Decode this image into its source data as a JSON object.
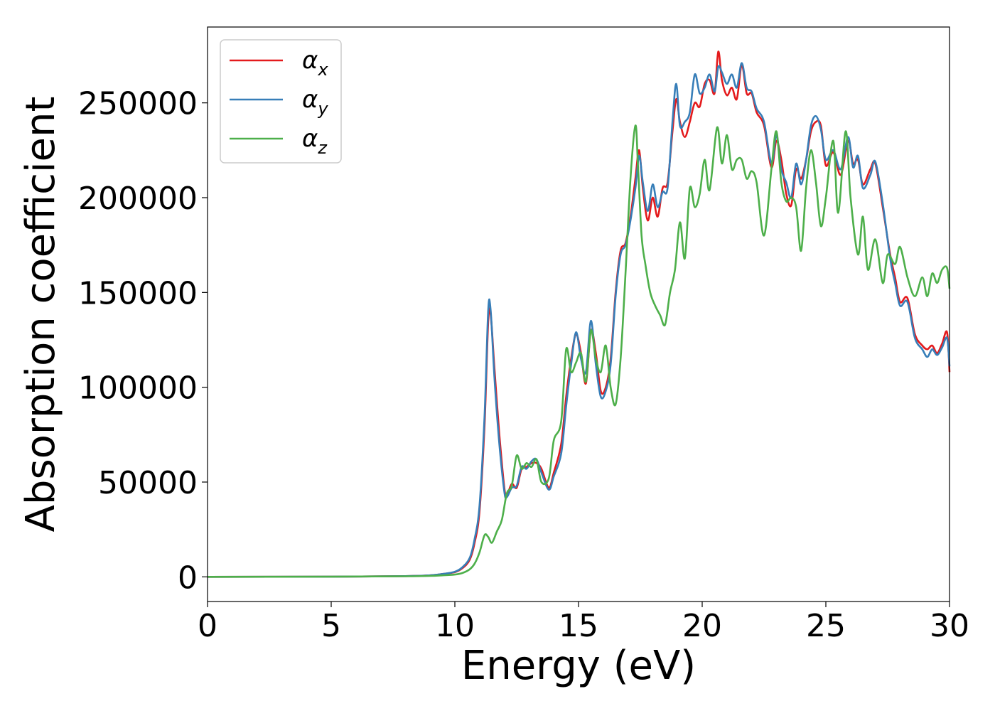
{
  "chart_data": {
    "type": "line",
    "title": "",
    "xlabel": "Energy (eV)",
    "ylabel": "Absorption coefficient",
    "xlim": [
      0,
      30
    ],
    "ylim": [
      -13000,
      290000
    ],
    "xticks": [
      0,
      5,
      10,
      15,
      20,
      25,
      30
    ],
    "yticks": [
      0,
      50000,
      100000,
      150000,
      200000,
      250000
    ],
    "grid": false,
    "legend": {
      "position": "top-left"
    },
    "series": [
      {
        "name": "α_x",
        "label_base": "α",
        "label_sub": "x",
        "color": "#e41a1c",
        "x": [
          0,
          5,
          8,
          9,
          9.5,
          10,
          10.3,
          10.6,
          10.8,
          11.0,
          11.2,
          11.35,
          11.45,
          11.6,
          11.8,
          12.0,
          12.1,
          12.3,
          12.5,
          12.7,
          12.9,
          13.1,
          13.3,
          13.5,
          13.8,
          14.0,
          14.3,
          14.5,
          14.7,
          14.9,
          15.1,
          15.3,
          15.5,
          15.7,
          15.9,
          16.1,
          16.3,
          16.5,
          16.7,
          16.9,
          17.1,
          17.3,
          17.45,
          17.6,
          17.8,
          18.0,
          18.2,
          18.4,
          18.6,
          18.8,
          18.95,
          19.1,
          19.3,
          19.5,
          19.7,
          19.9,
          20.1,
          20.3,
          20.5,
          20.65,
          20.8,
          21.0,
          21.2,
          21.4,
          21.6,
          21.8,
          22.0,
          22.2,
          22.5,
          22.8,
          23.0,
          23.2,
          23.4,
          23.6,
          23.8,
          24.0,
          24.2,
          24.4,
          24.6,
          24.8,
          25.0,
          25.3,
          25.6,
          25.9,
          26.1,
          26.3,
          26.5,
          26.8,
          27.0,
          27.3,
          27.6,
          27.8,
          28.0,
          28.3,
          28.6,
          28.9,
          29.1,
          29.3,
          29.5,
          29.7,
          29.9,
          30.0
        ],
        "y": [
          0,
          100,
          400,
          800,
          1500,
          2500,
          4500,
          9000,
          18000,
          35000,
          80000,
          135000,
          138000,
          110000,
          75000,
          47000,
          43000,
          49000,
          47000,
          57000,
          58000,
          60000,
          60000,
          57000,
          47000,
          55000,
          70000,
          95000,
          115000,
          128000,
          118000,
          102000,
          130000,
          118000,
          98000,
          100000,
          115000,
          150000,
          172000,
          176000,
          190000,
          210000,
          225000,
          205000,
          188000,
          200000,
          190000,
          205000,
          208000,
          235000,
          252000,
          240000,
          232000,
          240000,
          250000,
          248000,
          260000,
          262000,
          255000,
          277000,
          262000,
          254000,
          258000,
          252000,
          270000,
          255000,
          255000,
          245000,
          238000,
          216000,
          230000,
          220000,
          202000,
          196000,
          215000,
          210000,
          220000,
          235000,
          240000,
          238000,
          217000,
          224000,
          212000,
          230000,
          218000,
          220000,
          207000,
          215000,
          218000,
          195000,
          170000,
          158000,
          145000,
          147000,
          128000,
          122000,
          120000,
          122000,
          118000,
          123000,
          129000,
          108000
        ]
      },
      {
        "name": "α_y",
        "label_base": "α",
        "label_sub": "y",
        "color": "#377eb8",
        "x": [
          0,
          5,
          8,
          9,
          9.5,
          10,
          10.3,
          10.6,
          10.8,
          11.0,
          11.2,
          11.35,
          11.45,
          11.6,
          11.8,
          12.0,
          12.1,
          12.3,
          12.5,
          12.7,
          12.9,
          13.1,
          13.3,
          13.5,
          13.8,
          14.0,
          14.3,
          14.5,
          14.7,
          14.9,
          15.1,
          15.3,
          15.5,
          15.7,
          15.9,
          16.1,
          16.3,
          16.5,
          16.7,
          16.9,
          17.1,
          17.3,
          17.45,
          17.6,
          17.8,
          18.0,
          18.2,
          18.4,
          18.6,
          18.8,
          18.95,
          19.1,
          19.3,
          19.5,
          19.7,
          19.9,
          20.1,
          20.3,
          20.5,
          20.65,
          20.8,
          21.0,
          21.2,
          21.4,
          21.6,
          21.8,
          22.0,
          22.2,
          22.5,
          22.8,
          23.0,
          23.2,
          23.4,
          23.6,
          23.8,
          24.0,
          24.2,
          24.4,
          24.6,
          24.8,
          25.0,
          25.3,
          25.6,
          25.9,
          26.1,
          26.3,
          26.5,
          26.8,
          27.0,
          27.3,
          27.6,
          27.8,
          28.0,
          28.3,
          28.6,
          28.9,
          29.1,
          29.3,
          29.5,
          29.7,
          29.9,
          30.0
        ],
        "y": [
          0,
          100,
          400,
          800,
          1500,
          2700,
          5000,
          10000,
          20000,
          38000,
          85000,
          141000,
          140000,
          105000,
          70000,
          45000,
          42000,
          47000,
          48000,
          58000,
          57000,
          61000,
          62000,
          55000,
          46000,
          53000,
          65000,
          90000,
          112000,
          129000,
          115000,
          108000,
          135000,
          112000,
          95000,
          98000,
          112000,
          148000,
          170000,
          175000,
          188000,
          205000,
          222000,
          208000,
          193000,
          207000,
          195000,
          203000,
          205000,
          240000,
          260000,
          238000,
          240000,
          245000,
          265000,
          255000,
          258000,
          265000,
          256000,
          269000,
          266000,
          260000,
          265000,
          258000,
          271000,
          258000,
          256000,
          247000,
          240000,
          218000,
          233000,
          215000,
          208000,
          200000,
          218000,
          207000,
          220000,
          238000,
          243000,
          236000,
          220000,
          225000,
          215000,
          232000,
          216000,
          222000,
          205000,
          212000,
          219000,
          197000,
          168000,
          155000,
          143000,
          145000,
          126000,
          120000,
          116000,
          120000,
          117000,
          121000,
          126000,
          111000
        ]
      },
      {
        "name": "α_z",
        "label_base": "α",
        "label_sub": "z",
        "color": "#4daf4a",
        "x": [
          0,
          5,
          8,
          9,
          9.5,
          10,
          10.3,
          10.6,
          10.8,
          11.0,
          11.2,
          11.35,
          11.5,
          11.7,
          11.9,
          12.1,
          12.3,
          12.5,
          12.7,
          12.9,
          13.1,
          13.3,
          13.5,
          13.8,
          14.0,
          14.3,
          14.5,
          14.7,
          14.9,
          15.1,
          15.3,
          15.5,
          15.7,
          15.9,
          16.1,
          16.3,
          16.5,
          16.7,
          16.9,
          17.1,
          17.3,
          17.4,
          17.55,
          17.7,
          17.9,
          18.1,
          18.3,
          18.5,
          18.7,
          18.9,
          19.1,
          19.3,
          19.5,
          19.7,
          19.9,
          20.1,
          20.3,
          20.6,
          20.8,
          21.0,
          21.2,
          21.4,
          21.6,
          21.8,
          22.0,
          22.2,
          22.5,
          22.8,
          23.0,
          23.2,
          23.4,
          23.6,
          23.8,
          24.0,
          24.2,
          24.4,
          24.6,
          24.8,
          25.0,
          25.3,
          25.5,
          25.8,
          26.0,
          26.3,
          26.5,
          26.7,
          27.0,
          27.3,
          27.5,
          27.8,
          28.0,
          28.3,
          28.6,
          28.9,
          29.1,
          29.3,
          29.5,
          29.7,
          29.9,
          30.0
        ],
        "y": [
          0,
          100,
          300,
          500,
          800,
          1200,
          2000,
          4000,
          7000,
          13000,
          22000,
          21000,
          18000,
          24000,
          30000,
          44000,
          48000,
          64000,
          57000,
          60000,
          58000,
          62000,
          50000,
          52000,
          72000,
          82000,
          120000,
          108000,
          113000,
          118000,
          103000,
          130000,
          115000,
          108000,
          122000,
          100000,
          91000,
          115000,
          160000,
          210000,
          238000,
          218000,
          180000,
          165000,
          150000,
          143000,
          138000,
          133000,
          150000,
          162000,
          187000,
          168000,
          205000,
          195000,
          202000,
          220000,
          204000,
          237000,
          218000,
          233000,
          215000,
          220000,
          220000,
          210000,
          214000,
          208000,
          180000,
          215000,
          235000,
          208000,
          198000,
          200000,
          195000,
          172000,
          205000,
          225000,
          208000,
          185000,
          200000,
          230000,
          192000,
          235000,
          200000,
          170000,
          190000,
          162000,
          178000,
          155000,
          170000,
          165000,
          174000,
          158000,
          148000,
          158000,
          148000,
          160000,
          155000,
          162000,
          163000,
          152000
        ]
      }
    ]
  }
}
